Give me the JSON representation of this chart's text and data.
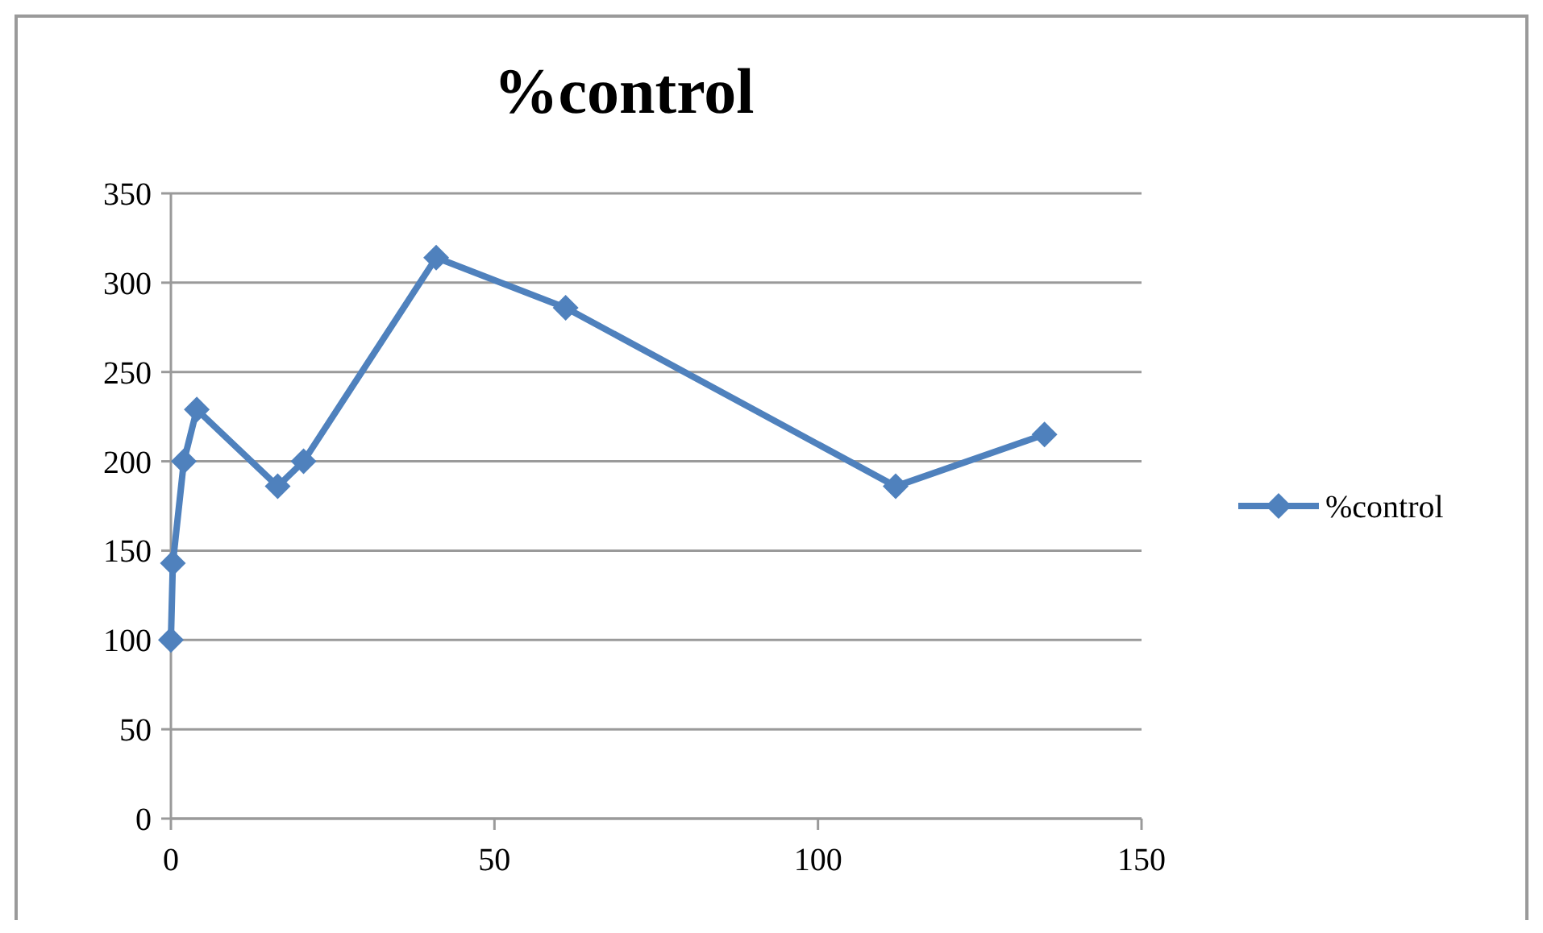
{
  "chart_data": {
    "type": "line",
    "title": "%control",
    "series": [
      {
        "name": "%control",
        "color": "#4f81bd",
        "x": [
          0,
          0.3,
          2,
          4,
          16.5,
          20.5,
          41,
          61,
          112,
          135
        ],
        "values": [
          100,
          143,
          200,
          229,
          186,
          200,
          314,
          286,
          186,
          215
        ]
      }
    ],
    "xlim": [
      0,
      150
    ],
    "xticks": [
      0,
      50,
      100,
      150
    ],
    "ylim": [
      0,
      350
    ],
    "yticks": [
      0,
      50,
      100,
      150,
      200,
      250,
      300,
      350
    ],
    "grid": "y",
    "legend": "right",
    "marker": "diamond",
    "line_style": "solid"
  }
}
